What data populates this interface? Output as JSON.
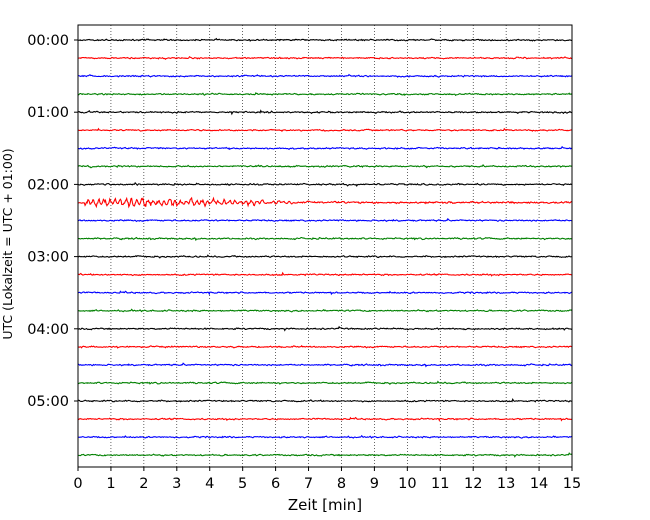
{
  "chart_data": {
    "type": "line",
    "xlabel": "Zeit  [min]",
    "ylabel": "UTC (Lokalzeit = UTC + 01:00)",
    "xlim": [
      0,
      15
    ],
    "x_ticks": [
      "0",
      "1",
      "2",
      "3",
      "4",
      "5",
      "6",
      "7",
      "8",
      "9",
      "10",
      "11",
      "12",
      "13",
      "14",
      "15"
    ],
    "y_ticks": [
      "00:00",
      "01:00",
      "02:00",
      "03:00",
      "04:00",
      "05:00"
    ],
    "trace_interval_min": 15,
    "trace_colors": [
      "#000000",
      "#ff0000",
      "#0000ff",
      "#008000"
    ],
    "trace_count": 24,
    "grid": "vertical dotted lines at each minute",
    "event": {
      "trace_start": "02:15",
      "x_start_min": 0.2,
      "x_end_min": 6.5,
      "description_color": "#ff0000"
    }
  }
}
